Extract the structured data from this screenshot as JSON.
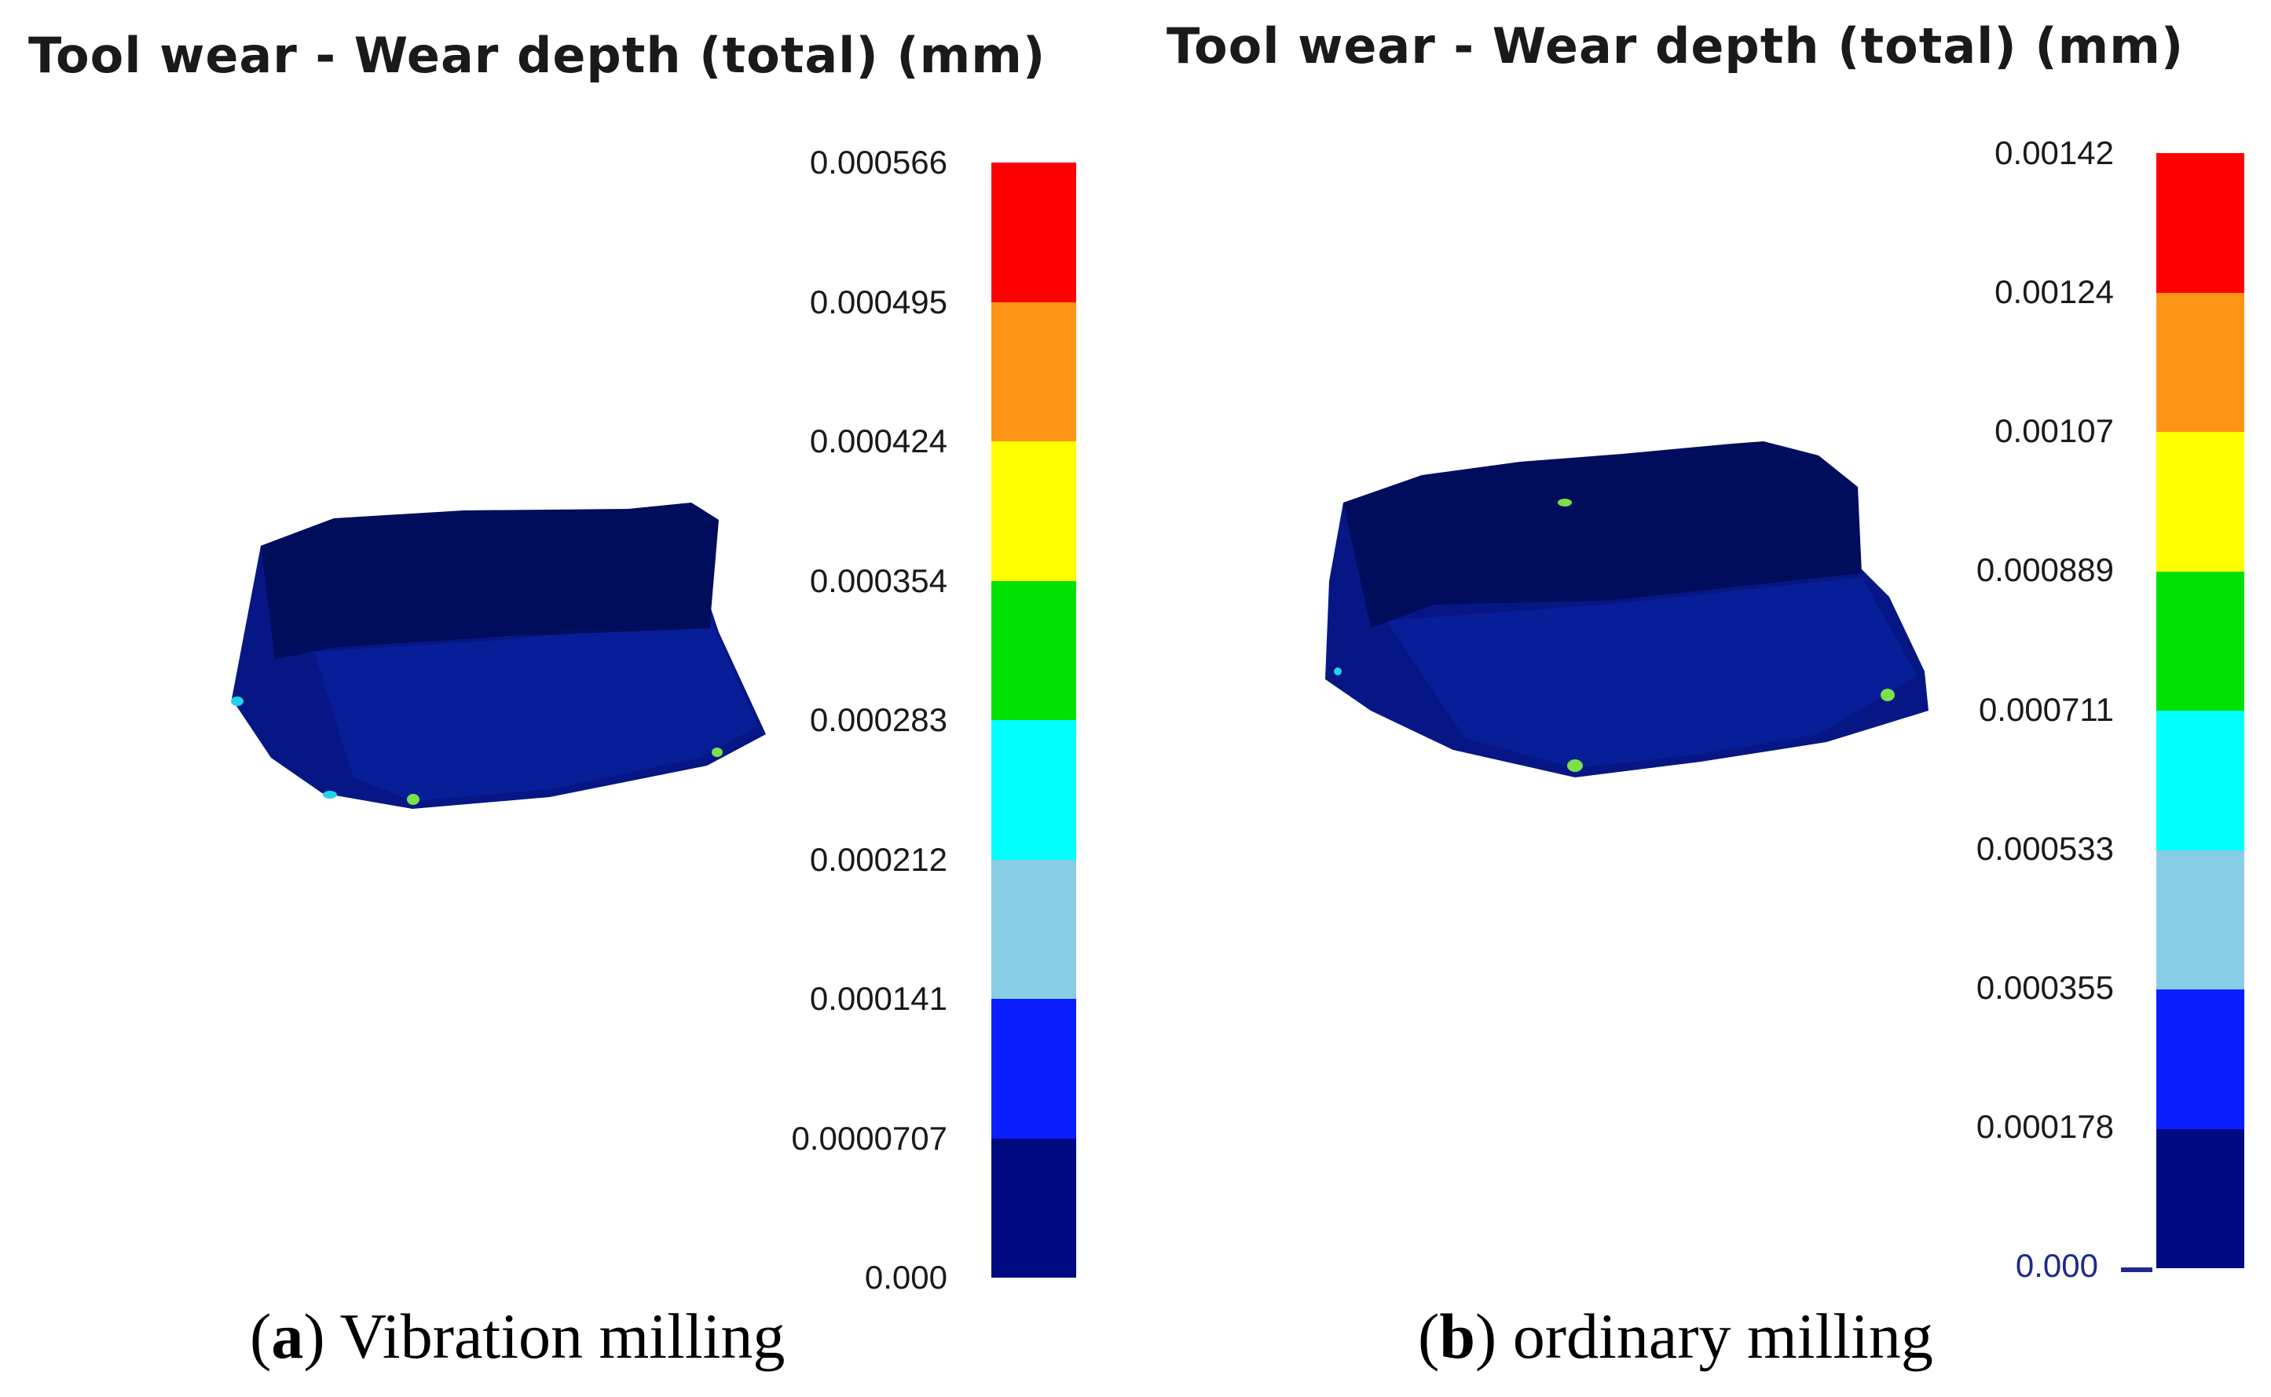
{
  "panels": [
    {
      "id": "a",
      "title": "Tool wear - Wear depth (total) (mm)",
      "caption_letter": "a",
      "caption_text": "Vibration milling",
      "legend_labels": [
        "0.000566",
        "0.000495",
        "0.000424",
        "0.000354",
        "0.000283",
        "0.000212",
        "0.000141",
        "0.0000707",
        "0.000"
      ]
    },
    {
      "id": "b",
      "title": "Tool wear - Wear depth (total) (mm)",
      "caption_letter": "b",
      "caption_text": "ordinary milling",
      "legend_labels": [
        "0.00142",
        "0.00124",
        "0.00107",
        "0.000889",
        "0.000711",
        "0.000533",
        "0.000355",
        "0.000178",
        "0.000"
      ]
    }
  ],
  "colorbar_colors": [
    "#ff0000",
    "#ff9516",
    "#ffff00",
    "#00e000",
    "#00ffff",
    "#87cde6",
    "#0a1eff",
    "#000a80"
  ],
  "colors": {
    "tool_top": "#000d5c",
    "tool_side": "#061785",
    "tool_side_light": "#0b23a8",
    "hotspot_cyan": "#22d3ee",
    "hotspot_green": "#7be04a"
  }
}
